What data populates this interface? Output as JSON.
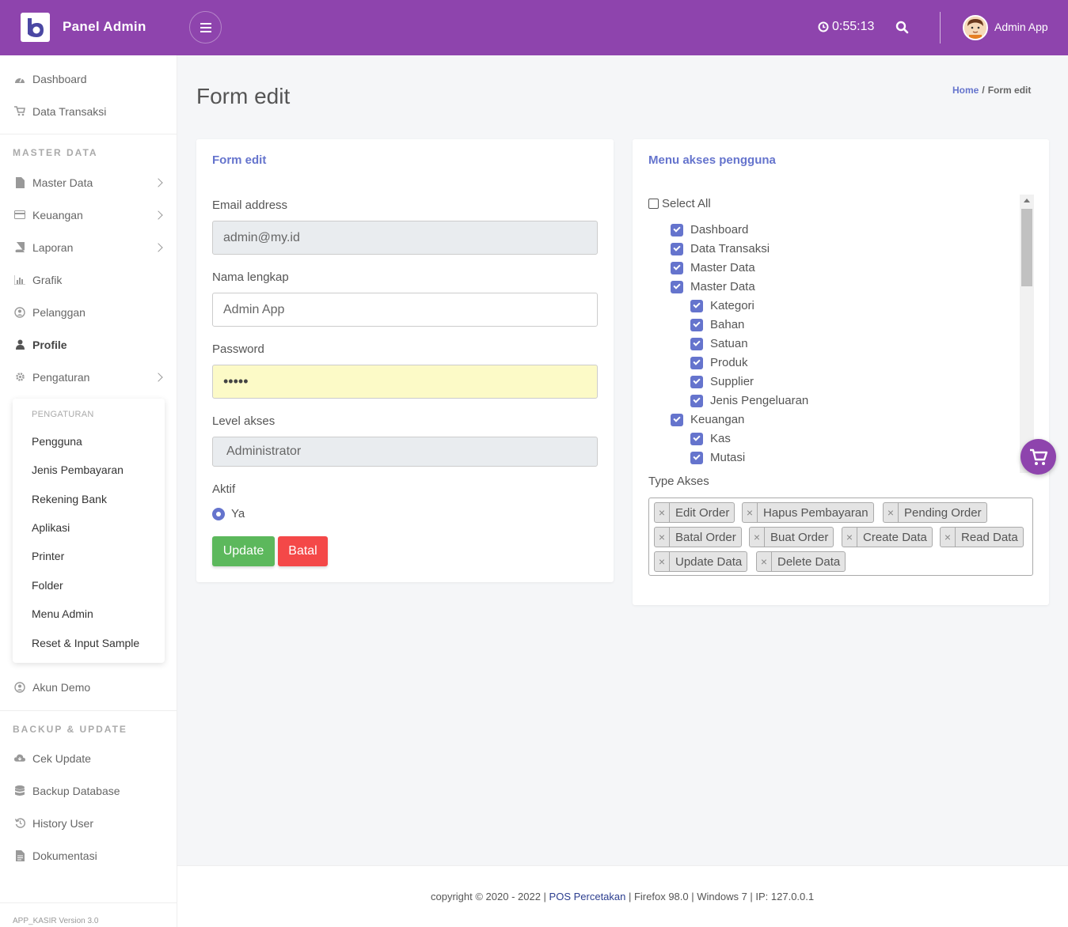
{
  "header": {
    "brand": "Panel Admin",
    "timer": "0:55:13",
    "user_name": "Admin App"
  },
  "sidebar": {
    "items_top": [
      {
        "label": "Dashboard",
        "icon": "dashboard-icon"
      },
      {
        "label": "Data Transaksi",
        "icon": "cart-icon"
      }
    ],
    "section_master": "MASTER DATA",
    "items_master": [
      {
        "label": "Master Data",
        "icon": "file-icon"
      },
      {
        "label": "Keuangan",
        "icon": "credit-card-icon"
      },
      {
        "label": "Laporan",
        "icon": "book-icon"
      },
      {
        "label": "Grafik",
        "icon": "bar-chart-icon"
      },
      {
        "label": "Pelanggan",
        "icon": "user-circle-icon"
      },
      {
        "label": "Profile",
        "icon": "user-icon"
      },
      {
        "label": "Pengaturan",
        "icon": "gear-icon"
      }
    ],
    "submenu": {
      "title": "PENGATURAN",
      "items": [
        "Pengguna",
        "Jenis Pembayaran",
        "Rekening Bank",
        "Aplikasi",
        "Printer",
        "Folder",
        "Menu Admin",
        "Reset & Input Sample"
      ]
    },
    "demo": "Akun Demo",
    "section_backup": "BACKUP & UPDATE",
    "items_backup": [
      {
        "label": "Cek Update",
        "icon": "cloud-download-icon"
      },
      {
        "label": "Backup Database",
        "icon": "database-icon"
      },
      {
        "label": "History User",
        "icon": "history-icon"
      },
      {
        "label": "Dokumentasi",
        "icon": "document-icon"
      }
    ],
    "version": "APP_KASIR Version 3.0"
  },
  "page": {
    "title": "Form edit",
    "breadcrumb": {
      "home": "Home",
      "sep": "/",
      "current": "Form edit"
    }
  },
  "form": {
    "title": "Form edit",
    "email_label": "Email address",
    "email_value": "admin@my.id",
    "name_label": "Nama lengkap",
    "name_value": "Admin App",
    "password_label": "Password",
    "password_value": "•••••",
    "level_label": "Level akses",
    "level_value": "Administrator",
    "aktif_label": "Aktif",
    "aktif_option": "Ya",
    "update_btn": "Update",
    "cancel_btn": "Batal"
  },
  "access": {
    "title": "Menu akses pengguna",
    "select_all": "Select All",
    "tree": [
      {
        "label": "Dashboard",
        "level": 1
      },
      {
        "label": "Data Transaksi",
        "level": 1
      },
      {
        "label": "Master Data",
        "level": 1
      },
      {
        "label": "Master Data",
        "level": 1
      },
      {
        "label": "Kategori",
        "level": 2
      },
      {
        "label": "Bahan",
        "level": 2
      },
      {
        "label": "Satuan",
        "level": 2
      },
      {
        "label": "Produk",
        "level": 2
      },
      {
        "label": "Supplier",
        "level": 2
      },
      {
        "label": "Jenis Pengeluaran",
        "level": 2
      },
      {
        "label": "Keuangan",
        "level": 1
      },
      {
        "label": "Kas",
        "level": 2
      },
      {
        "label": "Mutasi",
        "level": 2
      }
    ],
    "type_label": "Type Akses",
    "tags": [
      "Edit Order",
      "Hapus Pembayaran",
      "Pending Order",
      "Batal Order",
      "Buat Order",
      "Create Data",
      "Read Data",
      "Update Data",
      "Delete Data"
    ]
  },
  "footer": {
    "prefix": "copyright © 2020 - 2022 | ",
    "link": "POS Percetakan",
    "suffix": " | Firefox 98.0 | Windows 7 | IP: 127.0.0.1"
  },
  "colors": {
    "topbar": "#8e44ad",
    "accent": "#6574cd",
    "update": "#5cb85c",
    "cancel": "#f44848"
  }
}
